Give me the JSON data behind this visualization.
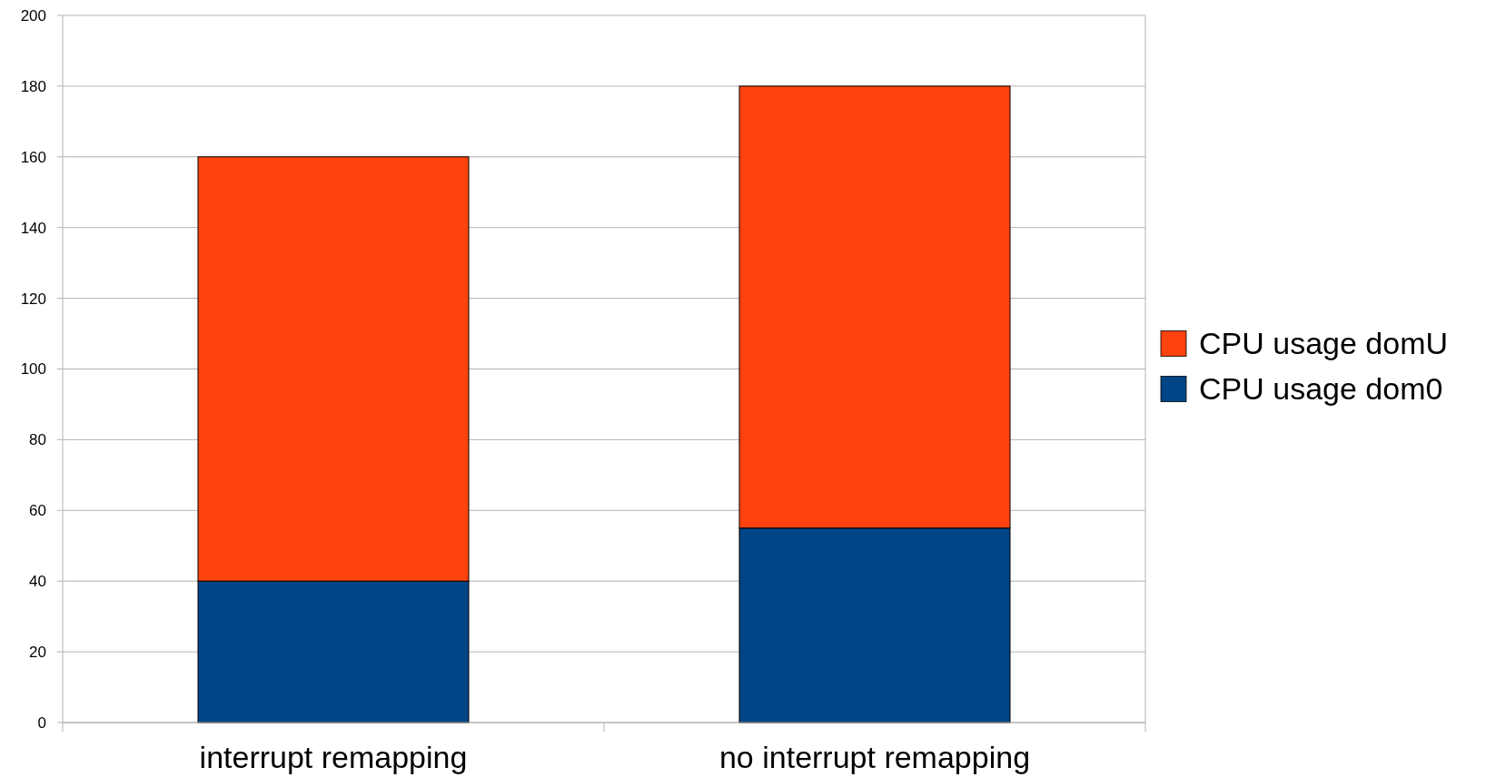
{
  "chart_data": {
    "type": "bar",
    "stacked": true,
    "categories": [
      "interrupt remapping",
      "no interrupt remapping"
    ],
    "series": [
      {
        "name": "CPU usage dom0",
        "color": "#004586",
        "values": [
          40,
          55
        ]
      },
      {
        "name": "CPU usage domU",
        "color": "#ff420e",
        "values": [
          120,
          125
        ]
      }
    ],
    "ylim": [
      0,
      200
    ],
    "yticks": [
      0,
      20,
      40,
      60,
      80,
      100,
      120,
      140,
      160,
      180,
      200
    ],
    "grid": "y",
    "legend": "right"
  }
}
